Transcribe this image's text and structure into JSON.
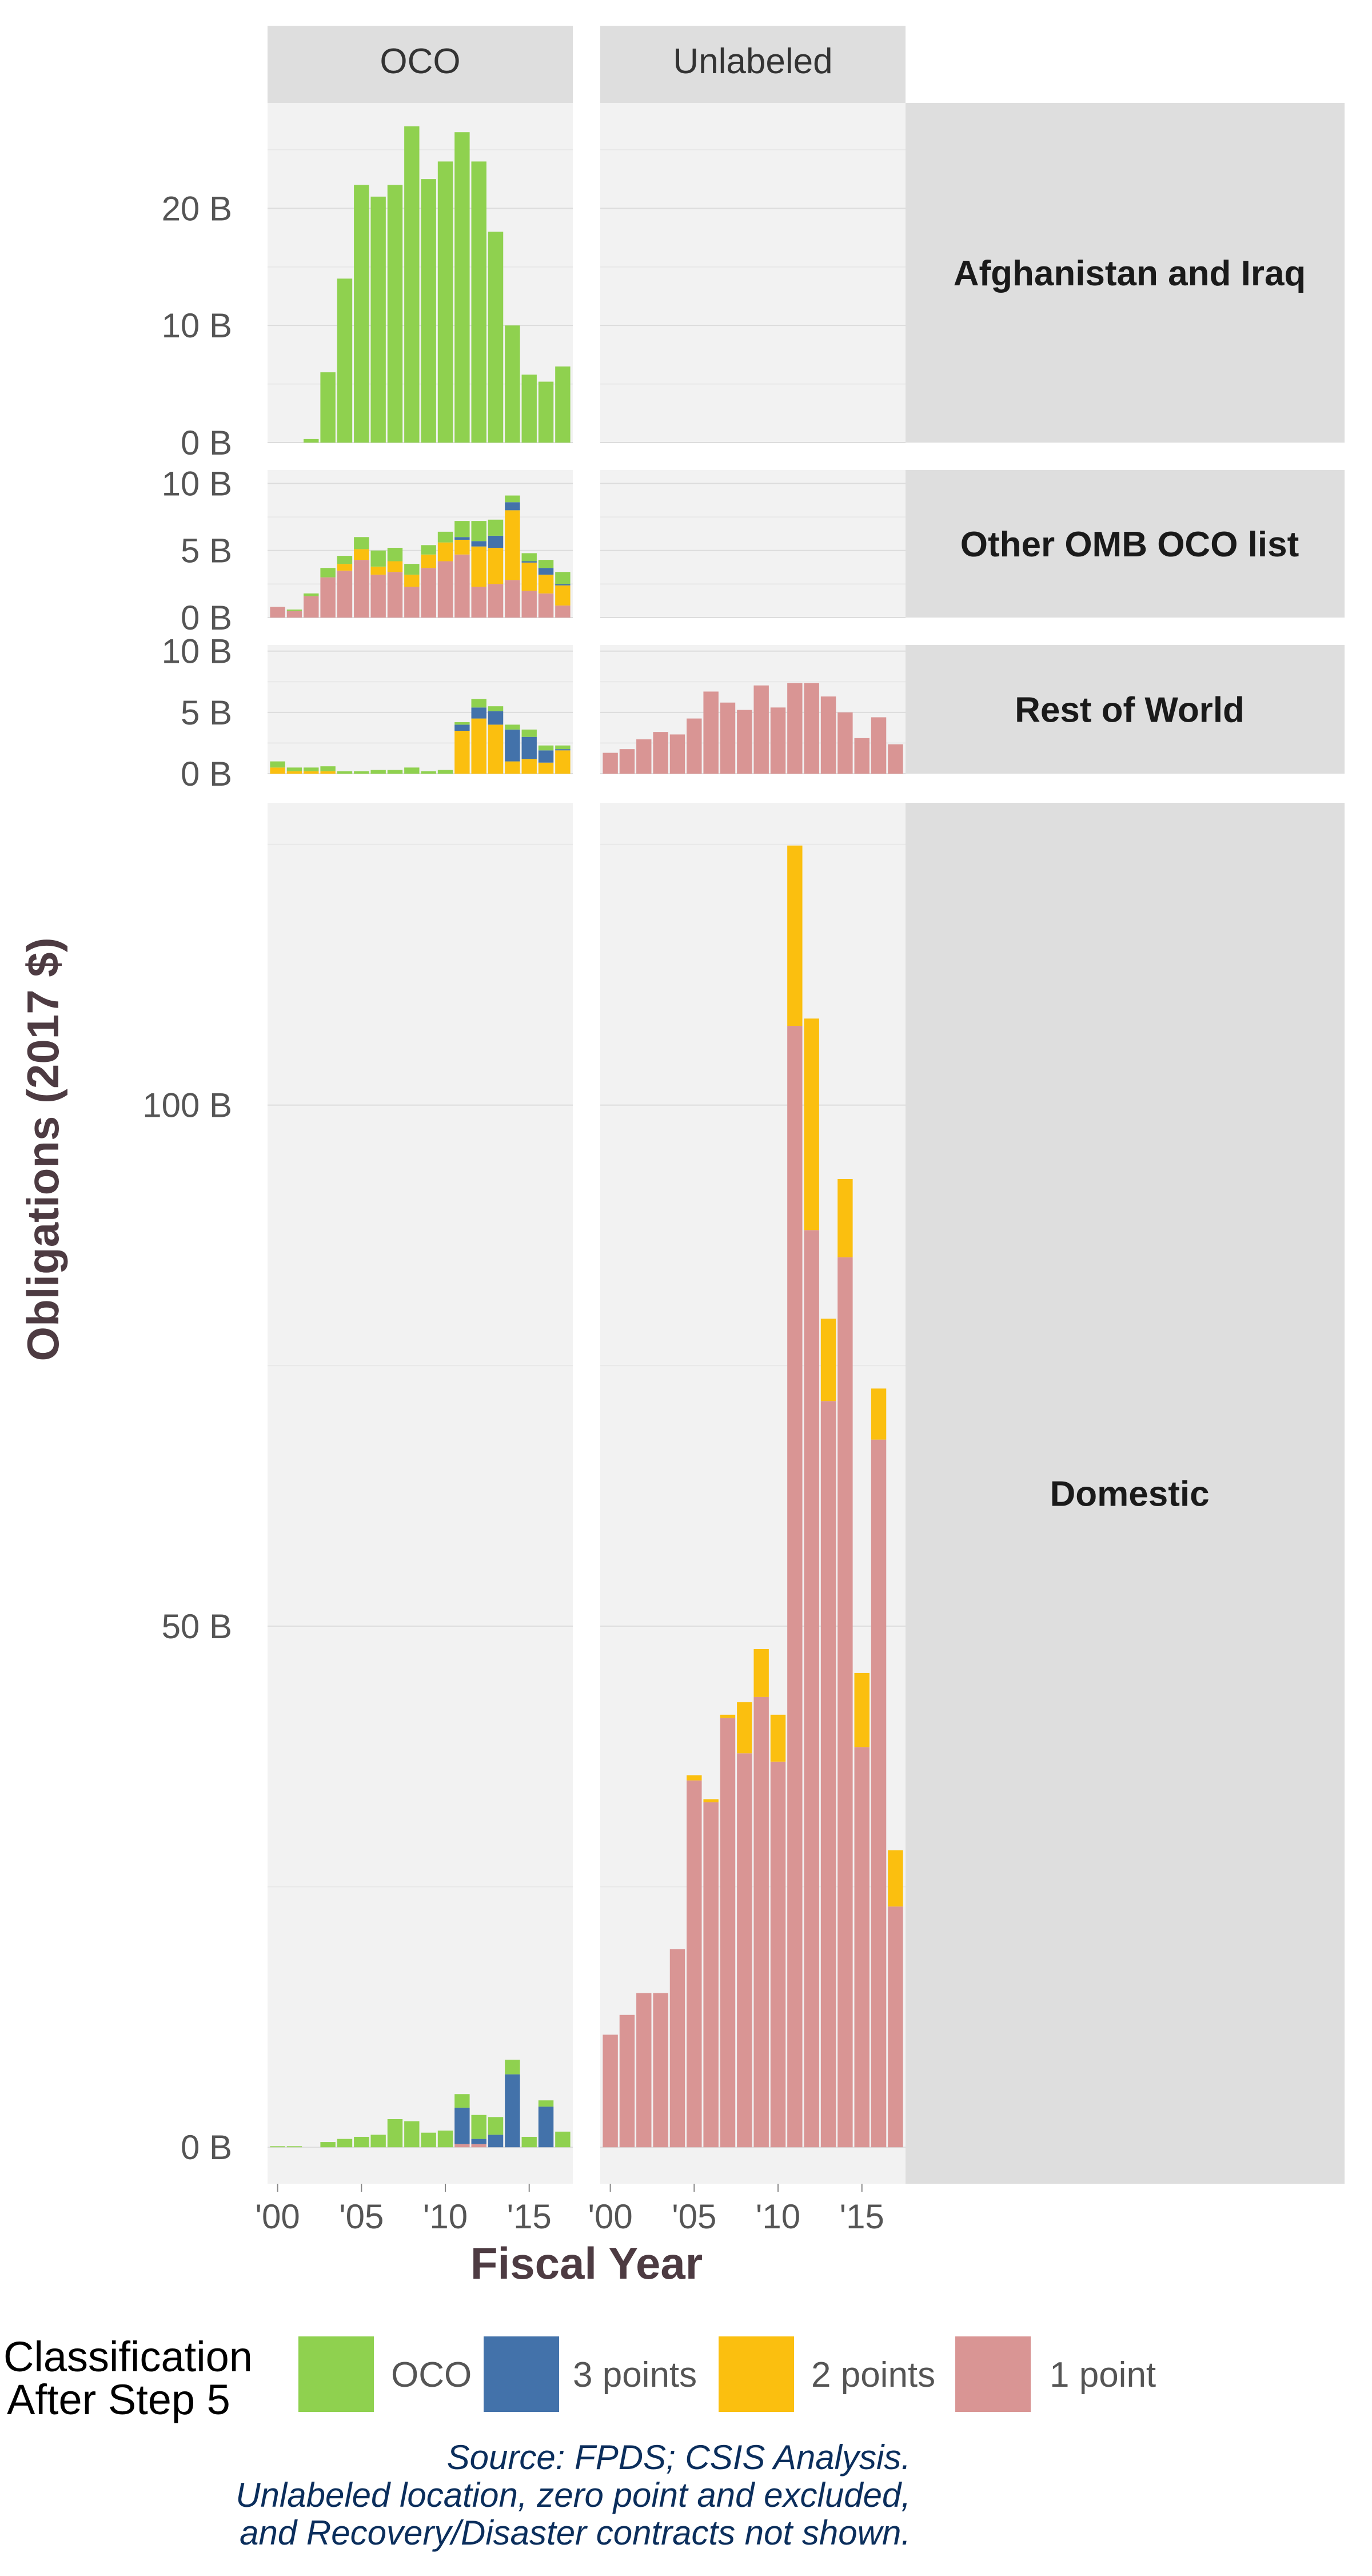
{
  "chart_data": {
    "type": "bar",
    "stacked": true,
    "facets": {
      "columns": [
        "OCO",
        "Unlabeled"
      ],
      "rows": [
        "Afghanistan and Iraq",
        "Other OMB OCO list",
        "Rest of World",
        "Domestic"
      ]
    },
    "x_tick_labels": [
      "'00",
      "'05",
      "'10",
      "'15"
    ],
    "xlabel": "Fiscal Year",
    "ylabel": "Obligations (2017 $)",
    "years": [
      2000,
      2001,
      2002,
      2003,
      2004,
      2005,
      2006,
      2007,
      2008,
      2009,
      2010,
      2011,
      2012,
      2013,
      2014,
      2015,
      2016,
      2017
    ],
    "series_order": [
      "1 point",
      "2 points",
      "3 points",
      "OCO"
    ],
    "colors": {
      "OCO": "#8fd14f",
      "3 points": "#4372aa",
      "2 points": "#fbbf0f",
      "1 point": "#d99594"
    },
    "panels": [
      {
        "row": "Afghanistan and Iraq",
        "column": "OCO",
        "ylim": [
          0,
          29
        ],
        "y_ticks": [
          0,
          10,
          20
        ],
        "y_tick_labels": [
          "0 B",
          "10 B",
          "20 B"
        ],
        "series": {
          "OCO": [
            0,
            0,
            0.3,
            6,
            14,
            22,
            21,
            22,
            27,
            22.5,
            24,
            26.5,
            24,
            18,
            10,
            5.8,
            5.2,
            6.5
          ]
        }
      },
      {
        "row": "Afghanistan and Iraq",
        "column": "Unlabeled",
        "ylim": [
          0,
          29
        ],
        "series": {}
      },
      {
        "row": "Other OMB OCO list",
        "column": "OCO",
        "ylim": [
          0,
          11
        ],
        "y_ticks": [
          0,
          5,
          10
        ],
        "y_tick_labels": [
          "0 B",
          "5 B",
          "10 B"
        ],
        "series": {
          "1 point": [
            0.8,
            0.5,
            1.6,
            3.0,
            3.5,
            4.3,
            3.2,
            3.4,
            2.3,
            3.7,
            4.2,
            4.7,
            2.3,
            2.5,
            2.8,
            2.0,
            1.8,
            0.9
          ],
          "2 points": [
            0,
            0,
            0,
            0,
            0.5,
            0.8,
            0.6,
            0.8,
            0.9,
            1.0,
            1.4,
            1.1,
            3.0,
            2.7,
            5.2,
            2.1,
            1.4,
            1.5
          ],
          "3 points": [
            0,
            0,
            0,
            0,
            0,
            0,
            0,
            0,
            0,
            0,
            0,
            0.2,
            0.4,
            0.9,
            0.6,
            0.1,
            0.5,
            0.1
          ],
          "OCO": [
            0,
            0.1,
            0.2,
            0.7,
            0.6,
            0.9,
            1.2,
            1.0,
            0.8,
            0.7,
            0.8,
            1.2,
            1.5,
            1.2,
            0.5,
            0.6,
            0.6,
            0.9
          ]
        }
      },
      {
        "row": "Other OMB OCO list",
        "column": "Unlabeled",
        "ylim": [
          0,
          11
        ],
        "series": {}
      },
      {
        "row": "Rest of World",
        "column": "OCO",
        "ylim": [
          0,
          10.5
        ],
        "y_ticks": [
          0,
          5,
          10
        ],
        "y_tick_labels": [
          "0 B",
          "5 B",
          "10 B"
        ],
        "series": {
          "1 point": [
            0,
            0,
            0,
            0,
            0,
            0,
            0,
            0,
            0,
            0,
            0,
            0,
            0,
            0,
            0,
            0,
            0,
            0
          ],
          "2 points": [
            0.5,
            0.2,
            0.2,
            0.2,
            0,
            0,
            0,
            0,
            0,
            0,
            0,
            3.5,
            4.5,
            4.0,
            1.0,
            1.2,
            0.9,
            1.9
          ],
          "3 points": [
            0,
            0,
            0,
            0,
            0,
            0,
            0,
            0,
            0,
            0,
            0,
            0.5,
            0.9,
            1.1,
            2.6,
            1.8,
            1.0,
            0.1
          ],
          "OCO": [
            0.5,
            0.3,
            0.3,
            0.4,
            0.2,
            0.2,
            0.3,
            0.3,
            0.5,
            0.2,
            0.3,
            0.2,
            0.7,
            0.4,
            0.4,
            0.6,
            0.4,
            0.3
          ]
        }
      },
      {
        "row": "Rest of World",
        "column": "Unlabeled",
        "ylim": [
          0,
          10.5
        ],
        "series": {
          "1 point": [
            1.7,
            2.0,
            2.8,
            3.4,
            3.2,
            4.5,
            6.7,
            5.8,
            5.2,
            7.2,
            5.4,
            7.4,
            7.4,
            6.3,
            5.0,
            2.9,
            4.6,
            2.4
          ]
        }
      },
      {
        "row": "Domestic",
        "column": "OCO",
        "ylim": [
          -3.5,
          129
        ],
        "y_ticks": [
          0,
          50,
          100
        ],
        "y_tick_labels": [
          "0 B",
          "50 B",
          "100 B"
        ],
        "series": {
          "1 point": [
            0,
            0,
            0,
            0,
            0,
            0,
            0,
            0,
            0,
            0,
            0,
            0.3,
            0.3,
            0,
            0,
            0,
            0,
            0
          ],
          "2 points": [
            0,
            0,
            0,
            0,
            0,
            0,
            0,
            0,
            0,
            0,
            0,
            0,
            0,
            0,
            0,
            0,
            0,
            0
          ],
          "3 points": [
            0,
            0,
            0,
            0,
            0,
            0,
            0,
            0,
            0,
            0,
            0,
            3.5,
            0.5,
            1.2,
            7.0,
            0,
            3.9,
            0
          ],
          "OCO": [
            0.1,
            0.1,
            0,
            0.5,
            0.8,
            1.0,
            1.2,
            2.7,
            2.5,
            1.4,
            1.6,
            1.3,
            2.3,
            1.7,
            1.4,
            1.0,
            0.6,
            1.5
          ]
        }
      },
      {
        "row": "Domestic",
        "column": "Unlabeled",
        "ylim": [
          -3.5,
          129
        ],
        "series": {
          "1 point": [
            10.8,
            12.7,
            14.8,
            14.8,
            19.0,
            35.2,
            33.1,
            41.2,
            37.8,
            43.2,
            37.0,
            107.6,
            88.0,
            71.6,
            85.4,
            38.4,
            67.9,
            23.1
          ],
          "2 points": [
            0,
            0,
            0,
            0,
            0,
            0.5,
            0.3,
            0.3,
            4.9,
            4.6,
            4.5,
            17.3,
            20.3,
            7.9,
            7.5,
            7.1,
            4.9,
            5.4
          ]
        }
      }
    ],
    "legend": {
      "title": [
        "Classification",
        "After Step 5"
      ],
      "position": "bottom",
      "items": [
        "OCO",
        "3 points",
        "2 points",
        "1 point"
      ]
    },
    "caption": [
      "Source: FPDS; CSIS Analysis.",
      "Unlabeled location, zero point and excluded,",
      "and Recovery/Disaster contracts not shown."
    ],
    "grid": true
  }
}
